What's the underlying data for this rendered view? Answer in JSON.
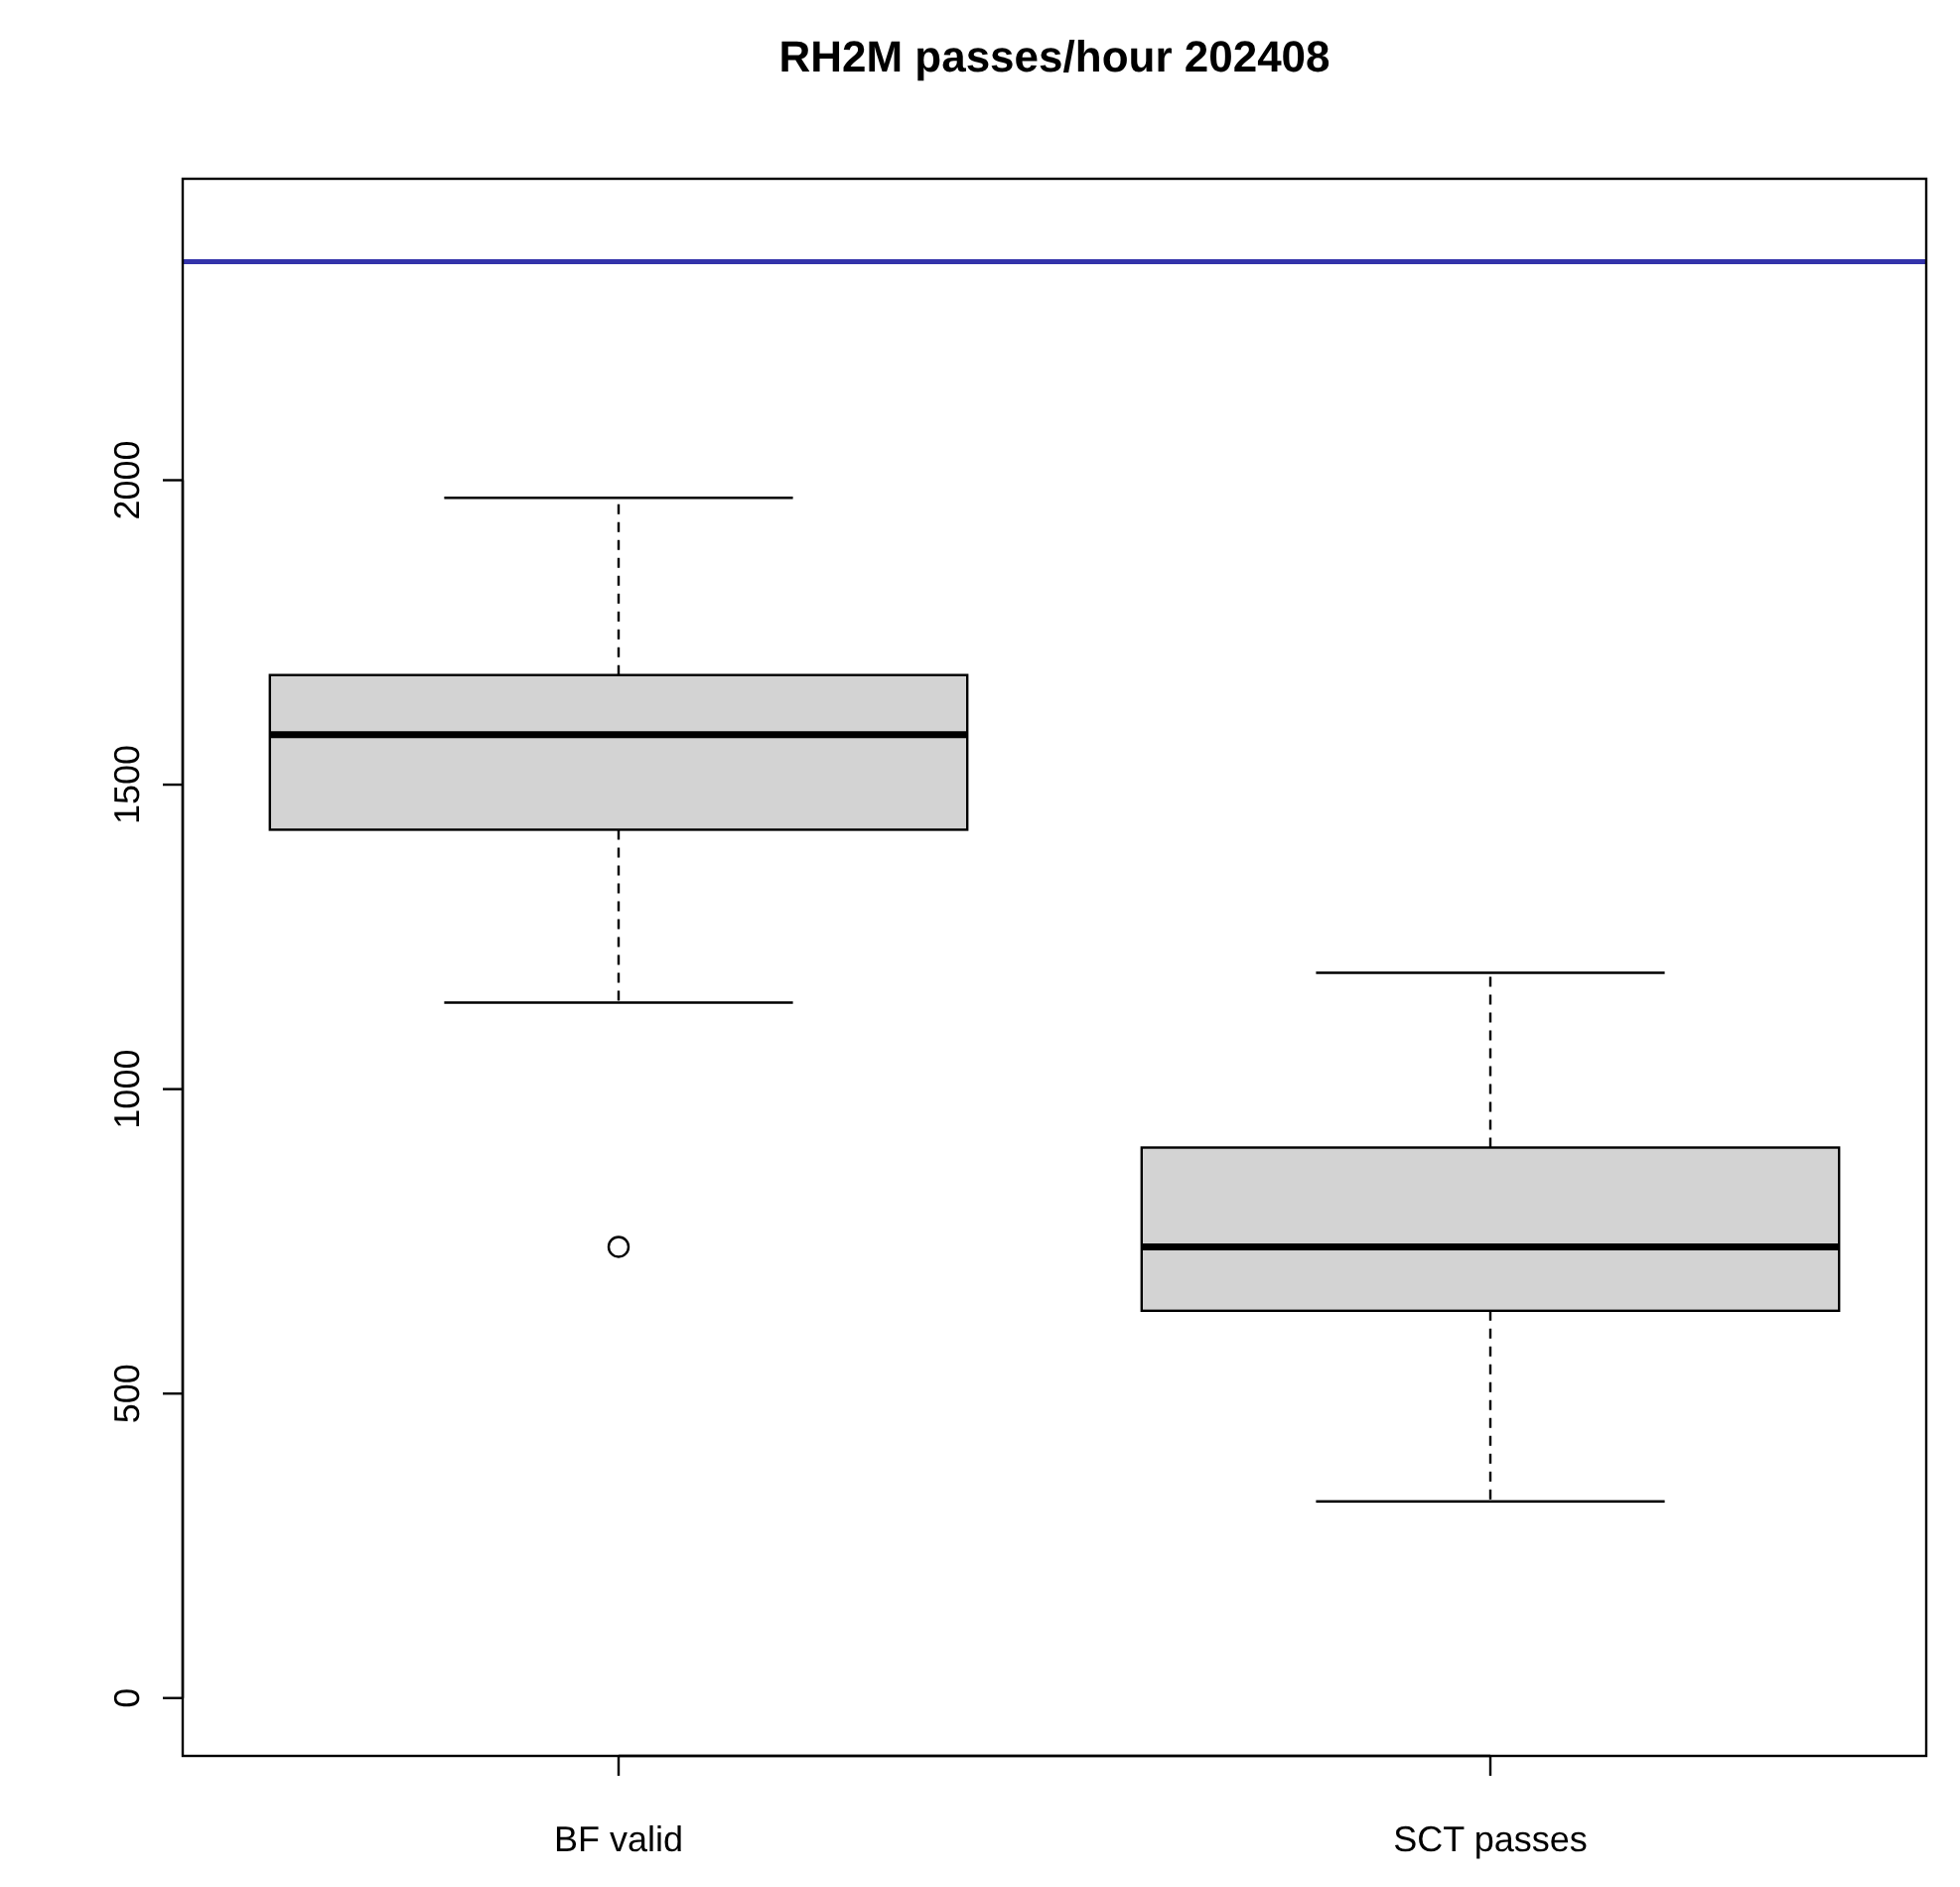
{
  "chart_data": {
    "type": "box",
    "title": "RH2M passes/hour 202408",
    "categories": [
      "BF valid",
      "SCT passes"
    ],
    "boxes": [
      {
        "low": 1142,
        "q1": 1426,
        "median": 1582,
        "q3": 1680,
        "high": 1971,
        "outliers": [
          741
        ]
      },
      {
        "low": 323,
        "q1": 636,
        "median": 741,
        "q3": 904,
        "high": 1191
      }
    ],
    "color": "#d3d3d3",
    "ylim": [
      -95,
      2495
    ],
    "yticks": [
      0,
      500,
      1000,
      1500,
      2000
    ],
    "ref_lines": [
      {
        "axis": "y",
        "value": 2359,
        "color": "#3333aa",
        "line_style": "solid"
      }
    ]
  }
}
